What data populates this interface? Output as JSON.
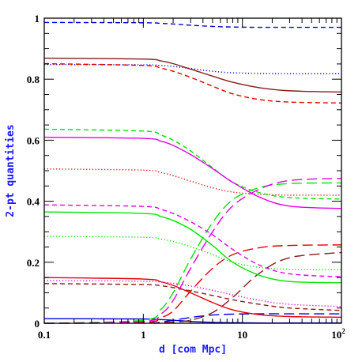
{
  "chart_data": {
    "type": "line",
    "title": "",
    "xlabel": "d [com Mpc]",
    "ylabel": "2-pt quantities",
    "xscale": "log",
    "xlim": [
      0.1,
      100
    ],
    "ylim": [
      0,
      1
    ],
    "x_tick_labels": [
      {
        "value": 0.1,
        "label": "0.1"
      },
      {
        "value": 1,
        "label": "1"
      },
      {
        "value": 10,
        "label": "10"
      },
      {
        "value": 100,
        "label": "10",
        "sup": "2"
      }
    ],
    "y_tick_labels": [
      {
        "value": 0,
        "label": "0"
      },
      {
        "value": 0.2,
        "label": "0.2"
      },
      {
        "value": 0.4,
        "label": "0.4"
      },
      {
        "value": 0.6,
        "label": "0.6"
      },
      {
        "value": 0.8,
        "label": "0.8"
      },
      {
        "value": 1,
        "label": "1"
      }
    ],
    "grid": false,
    "legend": "none",
    "series": [
      {
        "color": "#0000e6",
        "dash": "short",
        "x": [
          0.1,
          1,
          1.5,
          2,
          3,
          5,
          8,
          15,
          30,
          100
        ],
        "y": [
          0.986,
          0.985,
          0.983,
          0.981,
          0.977,
          0.973,
          0.971,
          0.97,
          0.97,
          0.97
        ]
      },
      {
        "color": "#0000e6",
        "dash": "dotted",
        "x": [
          0.1,
          1,
          1.5,
          2,
          3,
          5,
          8,
          15,
          30,
          100
        ],
        "y": [
          0.848,
          0.847,
          0.845,
          0.842,
          0.835,
          0.826,
          0.821,
          0.819,
          0.818,
          0.818
        ]
      },
      {
        "color": "#0000e6",
        "dash": "long",
        "x": [
          0.1,
          1,
          1.5,
          2,
          3,
          5,
          8,
          15,
          30,
          100
        ],
        "y": [
          0.0,
          0.001,
          0.004,
          0.01,
          0.019,
          0.027,
          0.03,
          0.031,
          0.031,
          0.031
        ]
      },
      {
        "color": "#0000e6",
        "dash": "solid",
        "x": [
          0.1,
          1,
          1.5,
          2,
          3,
          5,
          8,
          15,
          30,
          100
        ],
        "y": [
          0.015,
          0.014,
          0.012,
          0.01,
          0.006,
          0.003,
          0.002,
          0.001,
          0.001,
          0.001
        ]
      },
      {
        "color": "#8b1a1a",
        "dash": "solid",
        "x": [
          0.1,
          1,
          1.5,
          2,
          3,
          5,
          8,
          15,
          30,
          100
        ],
        "y": [
          0.869,
          0.866,
          0.86,
          0.851,
          0.833,
          0.81,
          0.79,
          0.772,
          0.762,
          0.758
        ]
      },
      {
        "color": "#8b1a1a",
        "dash": "short",
        "x": [
          0.1,
          1,
          1.5,
          2,
          3,
          5,
          8,
          15,
          30,
          100
        ],
        "y": [
          0.13,
          0.127,
          0.123,
          0.117,
          0.106,
          0.091,
          0.077,
          0.062,
          0.05,
          0.042
        ]
      },
      {
        "color": "#8b1a1a",
        "dash": "long",
        "x": [
          0.1,
          1,
          1.5,
          2,
          3,
          5,
          8,
          15,
          30,
          100
        ],
        "y": [
          0.0,
          0.001,
          0.002,
          0.004,
          0.01,
          0.035,
          0.085,
          0.165,
          0.215,
          0.232
        ]
      },
      {
        "color": "#e60000",
        "dash": "short",
        "x": [
          0.1,
          1,
          1.5,
          2,
          3,
          5,
          8,
          15,
          30,
          100
        ],
        "y": [
          0.851,
          0.845,
          0.836,
          0.826,
          0.806,
          0.777,
          0.752,
          0.733,
          0.725,
          0.722
        ]
      },
      {
        "color": "#e60000",
        "dash": "solid",
        "x": [
          0.1,
          1,
          1.5,
          2,
          3,
          5,
          8,
          15,
          30,
          100
        ],
        "y": [
          0.15,
          0.145,
          0.136,
          0.124,
          0.1,
          0.068,
          0.044,
          0.028,
          0.022,
          0.02
        ]
      },
      {
        "color": "#e60000",
        "dash": "long",
        "x": [
          0.1,
          1,
          1.5,
          2,
          3,
          5,
          8,
          15,
          30,
          100
        ],
        "y": [
          0.0,
          0.003,
          0.018,
          0.04,
          0.105,
          0.18,
          0.225,
          0.248,
          0.255,
          0.257
        ]
      },
      {
        "color": "#e60000",
        "dash": "dotted",
        "x": [
          0.1,
          1,
          1.5,
          2,
          3,
          5,
          8,
          15,
          30,
          100
        ],
        "y": [
          0.506,
          0.502,
          0.494,
          0.484,
          0.466,
          0.444,
          0.43,
          0.423,
          0.42,
          0.42
        ]
      },
      {
        "color": "#00e600",
        "dash": "short",
        "x": [
          0.1,
          1,
          1.5,
          2,
          3,
          5,
          8,
          15,
          30,
          100
        ],
        "y": [
          0.636,
          0.63,
          0.617,
          0.6,
          0.565,
          0.51,
          0.462,
          0.428,
          0.412,
          0.407
        ]
      },
      {
        "color": "#00e600",
        "dash": "solid",
        "x": [
          0.1,
          1,
          1.5,
          2,
          3,
          5,
          8,
          15,
          30,
          100
        ],
        "y": [
          0.365,
          0.36,
          0.35,
          0.337,
          0.308,
          0.255,
          0.2,
          0.157,
          0.137,
          0.133
        ]
      },
      {
        "color": "#00e600",
        "dash": "dotted",
        "x": [
          0.1,
          1,
          1.5,
          2,
          3,
          5,
          8,
          15,
          30,
          100
        ],
        "y": [
          0.285,
          0.282,
          0.276,
          0.268,
          0.251,
          0.225,
          0.2,
          0.183,
          0.177,
          0.176
        ]
      },
      {
        "color": "#00e600",
        "dash": "long",
        "x": [
          0.1,
          1,
          1.5,
          2,
          3,
          5,
          8,
          15,
          30,
          100
        ],
        "y": [
          0.0,
          0.01,
          0.045,
          0.1,
          0.21,
          0.33,
          0.405,
          0.445,
          0.458,
          0.46
        ]
      },
      {
        "color": "#e600e6",
        "dash": "solid",
        "x": [
          0.1,
          1,
          1.5,
          2,
          3,
          5,
          8,
          15,
          30,
          100
        ],
        "y": [
          0.61,
          0.606,
          0.597,
          0.583,
          0.553,
          0.507,
          0.462,
          0.413,
          0.384,
          0.376
        ]
      },
      {
        "color": "#e600e6",
        "dash": "short",
        "x": [
          0.1,
          1,
          1.5,
          2,
          3,
          5,
          8,
          15,
          30,
          100
        ],
        "y": [
          0.388,
          0.383,
          0.373,
          0.36,
          0.333,
          0.29,
          0.242,
          0.19,
          0.162,
          0.152
        ]
      },
      {
        "color": "#e600e6",
        "dash": "dotted",
        "x": [
          0.1,
          1,
          1.5,
          2,
          3,
          5,
          8,
          15,
          30,
          100
        ],
        "y": [
          0.14,
          0.138,
          0.135,
          0.131,
          0.122,
          0.108,
          0.093,
          0.075,
          0.062,
          0.055
        ]
      },
      {
        "color": "#e600e6",
        "dash": "long",
        "x": [
          0.1,
          1,
          1.5,
          2,
          3,
          5,
          8,
          15,
          30,
          100
        ],
        "y": [
          0.0,
          0.006,
          0.03,
          0.075,
          0.18,
          0.3,
          0.385,
          0.44,
          0.468,
          0.475
        ]
      }
    ]
  }
}
